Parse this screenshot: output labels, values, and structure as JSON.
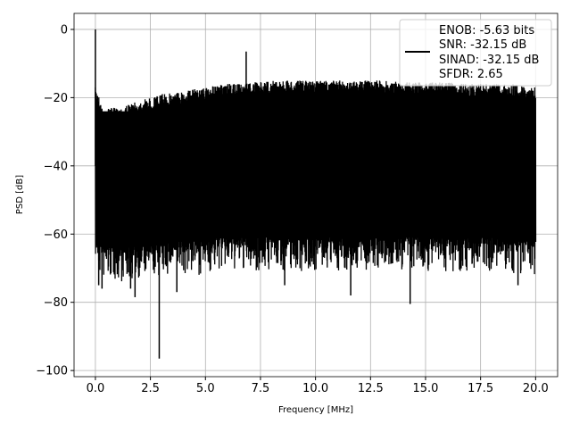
{
  "chart_data": {
    "type": "line",
    "title": "",
    "xlabel": "Frequency [MHz]",
    "ylabel": "PSD [dB]",
    "xlim": [
      -0.97,
      21.0
    ],
    "ylim": [
      -101.8,
      4.7
    ],
    "grid": true,
    "xticks": [
      0,
      2.5,
      5,
      7.5,
      10,
      12.5,
      15,
      17.5,
      20
    ],
    "xtick_labels": [
      "0.0",
      "2.5",
      "5.0",
      "7.5",
      "10.0",
      "12.5",
      "15.0",
      "17.5",
      "20.0"
    ],
    "yticks": [
      0,
      -20,
      -40,
      -60,
      -80,
      -100
    ],
    "ytick_labels": [
      "0",
      "−20",
      "−40",
      "−60",
      "−80",
      "−100"
    ],
    "legend": {
      "placement": "upper-right",
      "entries": [
        "ENOB: -5.63 bits",
        "SNR: -32.15 dB",
        "SINAD: -32.15 dB",
        "SFDR: 2.65"
      ]
    },
    "series": [
      {
        "name": "PSD",
        "color": "#000000",
        "envelope_freq": [
          0,
          0.1,
          0.3,
          0.5,
          1,
          1.5,
          2,
          2.5,
          3,
          3.5,
          4,
          4.5,
          5,
          5.5,
          6,
          6.5,
          7,
          7.5,
          8,
          9,
          10,
          11,
          12,
          13,
          14,
          15,
          16,
          17,
          18,
          19,
          20
        ],
        "upper_db": [
          -17,
          -18,
          -23,
          -23,
          -23,
          -22,
          -21,
          -20,
          -19,
          -18.5,
          -18,
          -17.5,
          -17,
          -16.5,
          -16,
          -16,
          -15.5,
          -15.5,
          -15,
          -15,
          -15,
          -15,
          -15,
          -15,
          -15.5,
          -15.5,
          -15.5,
          -16,
          -16,
          -16,
          -17
        ],
        "lower_db": [
          -58,
          -62,
          -64,
          -64,
          -64,
          -64,
          -63,
          -63,
          -63,
          -62,
          -62,
          -62,
          -62,
          -61,
          -61,
          -61,
          -61,
          -61,
          -61,
          -61,
          -61,
          -61,
          -61,
          -61,
          -61,
          -61,
          -61,
          -61,
          -61,
          -62,
          -62
        ],
        "peaks": [
          {
            "freq": 0,
            "db": 0
          },
          {
            "freq": 6.85,
            "db": -6.5
          }
        ],
        "dips": [
          {
            "freq": 0.15,
            "db": -75
          },
          {
            "freq": 0.3,
            "db": -76
          },
          {
            "freq": 1.6,
            "db": -76
          },
          {
            "freq": 1.8,
            "db": -78.5
          },
          {
            "freq": 2.9,
            "db": -96.5
          },
          {
            "freq": 3.7,
            "db": -77
          },
          {
            "freq": 8.6,
            "db": -75
          },
          {
            "freq": 11.6,
            "db": -78
          },
          {
            "freq": 14.3,
            "db": -80.5
          },
          {
            "freq": 19.2,
            "db": -75
          }
        ]
      }
    ]
  }
}
